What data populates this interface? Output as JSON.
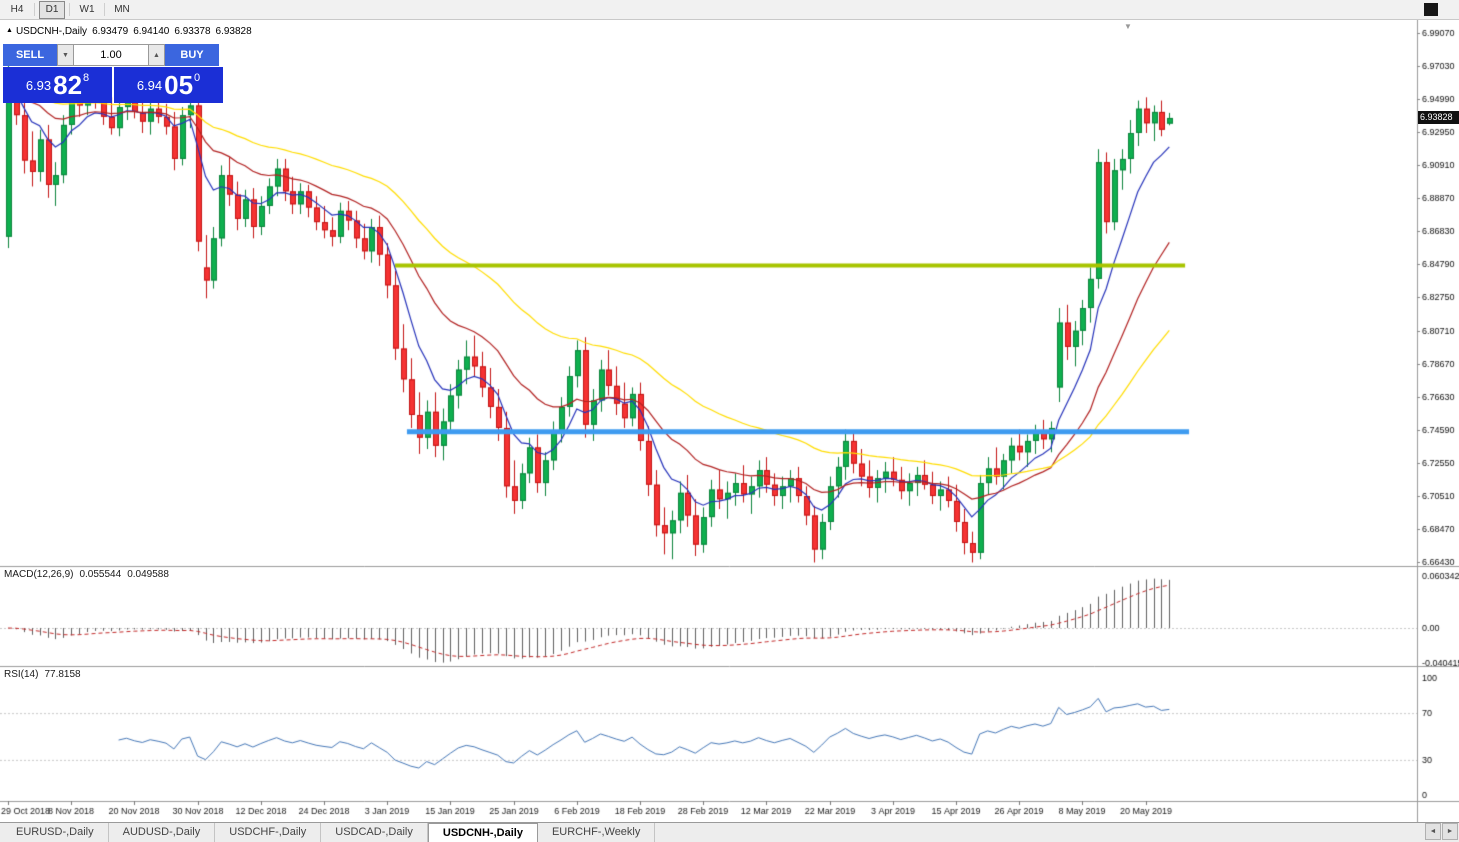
{
  "toolbar": {
    "timeframes": [
      {
        "label": "H4",
        "active": false
      },
      {
        "label": "D1",
        "active": true
      },
      {
        "label": "W1",
        "active": false
      },
      {
        "label": "MN",
        "active": false
      }
    ]
  },
  "icons": {
    "symbol_marker": "▲",
    "spinner_down": "▼",
    "spinner_up": "▲",
    "scroll_left": "◄",
    "scroll_right": "►",
    "shift_marker": "▼"
  },
  "chart": {
    "symbol_line": {
      "symbol": "USDCNH-,Daily",
      "open": "6.93479",
      "high": "6.94140",
      "low": "6.93378",
      "close": "6.93828"
    },
    "current_price": "6.93828"
  },
  "one_click": {
    "sell_label": "SELL",
    "buy_label": "BUY",
    "volume": "1.00",
    "sell_price_small": "6.93",
    "sell_price_big": "82",
    "sell_price_sup": "8",
    "buy_price_small": "6.94",
    "buy_price_big": "05",
    "buy_price_sup": "0",
    "colors": {
      "button_blue": "#3B66DF",
      "panel_blue": "#1B2FD6"
    }
  },
  "indicators": {
    "macd": {
      "label": "MACD(12,26,9)",
      "value_main": "0.055544",
      "value_signal": "0.049588",
      "scale_labels": [
        "0.060342",
        "0.00",
        "-0.040415"
      ],
      "params": {
        "fast": 12,
        "slow": 26,
        "signal": 9
      }
    },
    "rsi": {
      "label": "RSI(14)",
      "value": "77.8158",
      "scale_labels": [
        "100",
        "70",
        "30",
        "0"
      ],
      "levels": [
        70,
        30
      ],
      "period": 14
    }
  },
  "tabs": {
    "items": [
      {
        "label": "EURUSD-,Daily",
        "active": false
      },
      {
        "label": "AUDUSD-,Daily",
        "active": false
      },
      {
        "label": "USDCHF-,Daily",
        "active": false
      },
      {
        "label": "USDCAD-,Daily",
        "active": false
      },
      {
        "label": "USDCNH-,Daily",
        "active": true
      },
      {
        "label": "EURCHF-,Weekly",
        "active": false
      }
    ]
  },
  "chart_data": {
    "type": "candlestick",
    "symbol": "USDCNH-",
    "timeframe": "Daily",
    "price_axis": {
      "labels": [
        "6.99070",
        "6.97030",
        "6.94990",
        "6.92950",
        "6.90910",
        "6.88870",
        "6.86830",
        "6.84790",
        "6.82750",
        "6.80710",
        "6.78670",
        "6.76630",
        "6.74590",
        "6.72550",
        "6.70510",
        "6.68470",
        "6.66430"
      ],
      "max": 6.9907,
      "min": 6.6643,
      "step": 0.0204
    },
    "x_labels": [
      "29 Oct 2018",
      "8 Nov 2018",
      "20 Nov 2018",
      "30 Nov 2018",
      "12 Dec 2018",
      "24 Dec 2018",
      "3 Jan 2019",
      "15 Jan 2019",
      "25 Jan 2019",
      "6 Feb 2019",
      "18 Feb 2019",
      "28 Feb 2019",
      "12 Mar 2019",
      "22 Mar 2019",
      "3 Apr 2019",
      "15 Apr 2019",
      "26 Apr 2019",
      "8 May 2019",
      "20 May 2019"
    ],
    "x_label_indices": [
      0,
      8,
      16,
      24,
      32,
      40,
      48,
      56,
      64,
      72,
      80,
      88,
      96,
      104,
      112,
      120,
      128,
      136,
      144
    ],
    "horizontal_lines": [
      {
        "price": 6.8473,
        "color": "#A8C400",
        "width": 4,
        "start_index": 49,
        "end_index": 149
      },
      {
        "price": 6.7447,
        "color": "#3E9BF0",
        "width": 5,
        "start_index": 50.5,
        "end_index": 149.5
      }
    ],
    "moving_averages": [
      {
        "period": 8,
        "type": "ema",
        "color": "#2633BB"
      },
      {
        "period": 21,
        "type": "ema",
        "color": "#B22222"
      },
      {
        "period": 45,
        "type": "ema",
        "color": "#FFDD00"
      }
    ],
    "colors": {
      "up": "#0FAF4F",
      "up_border": "#0B833C",
      "down": "#F53232",
      "down_border": "#C31414",
      "macd_hist": "#606060",
      "macd_signal": "#C22828",
      "rsi": "#4678B8"
    },
    "ohlc": [
      [
        6.865,
        6.975,
        6.858,
        6.958
      ],
      [
        6.958,
        6.968,
        6.934,
        6.94
      ],
      [
        6.94,
        6.951,
        6.904,
        6.912
      ],
      [
        6.912,
        6.93,
        6.896,
        6.905
      ],
      [
        6.905,
        6.931,
        6.899,
        6.925
      ],
      [
        6.925,
        6.934,
        6.889,
        6.897
      ],
      [
        6.897,
        6.911,
        6.884,
        6.903
      ],
      [
        6.903,
        6.94,
        6.898,
        6.934
      ],
      [
        6.934,
        6.959,
        6.928,
        6.954
      ],
      [
        6.954,
        6.964,
        6.939,
        6.946
      ],
      [
        6.946,
        6.962,
        6.94,
        6.957
      ],
      [
        6.957,
        6.963,
        6.944,
        6.95
      ],
      [
        6.95,
        6.957,
        6.934,
        6.939
      ],
      [
        6.939,
        6.951,
        6.928,
        6.932
      ],
      [
        6.932,
        6.95,
        6.927,
        6.945
      ],
      [
        6.945,
        6.955,
        6.937,
        6.951
      ],
      [
        6.951,
        6.958,
        6.938,
        6.942
      ],
      [
        6.942,
        6.95,
        6.929,
        6.936
      ],
      [
        6.936,
        6.948,
        6.928,
        6.944
      ],
      [
        6.944,
        6.952,
        6.935,
        6.939
      ],
      [
        6.939,
        6.947,
        6.928,
        6.933
      ],
      [
        6.933,
        6.942,
        6.906,
        6.913
      ],
      [
        6.913,
        6.945,
        6.909,
        6.94
      ],
      [
        6.94,
        6.95,
        6.932,
        6.946
      ],
      [
        6.946,
        6.951,
        6.856,
        6.862
      ],
      [
        6.846,
        6.866,
        6.827,
        6.838
      ],
      [
        6.838,
        6.871,
        6.833,
        6.864
      ],
      [
        6.864,
        6.909,
        6.859,
        6.903
      ],
      [
        6.903,
        6.914,
        6.884,
        6.891
      ],
      [
        6.891,
        6.899,
        6.869,
        6.876
      ],
      [
        6.876,
        6.894,
        6.871,
        6.888
      ],
      [
        6.888,
        6.895,
        6.864,
        6.871
      ],
      [
        6.871,
        6.89,
        6.866,
        6.884
      ],
      [
        6.884,
        6.901,
        6.879,
        6.896
      ],
      [
        6.896,
        6.913,
        6.89,
        6.907
      ],
      [
        6.907,
        6.913,
        6.887,
        6.893
      ],
      [
        6.893,
        6.902,
        6.879,
        6.885
      ],
      [
        6.885,
        6.898,
        6.879,
        6.893
      ],
      [
        6.893,
        6.897,
        6.877,
        6.883
      ],
      [
        6.883,
        6.89,
        6.869,
        6.874
      ],
      [
        6.874,
        6.884,
        6.864,
        6.869
      ],
      [
        6.869,
        6.877,
        6.859,
        6.865
      ],
      [
        6.865,
        6.886,
        6.861,
        6.881
      ],
      [
        6.881,
        6.887,
        6.869,
        6.875
      ],
      [
        6.875,
        6.881,
        6.858,
        6.864
      ],
      [
        6.864,
        6.873,
        6.851,
        6.856
      ],
      [
        6.856,
        6.876,
        6.849,
        6.871
      ],
      [
        6.871,
        6.878,
        6.847,
        6.854
      ],
      [
        6.854,
        6.861,
        6.827,
        6.835
      ],
      [
        6.835,
        6.844,
        6.789,
        6.796
      ],
      [
        6.796,
        6.811,
        6.769,
        6.777
      ],
      [
        6.777,
        6.79,
        6.747,
        6.755
      ],
      [
        6.755,
        6.769,
        6.731,
        6.741
      ],
      [
        6.741,
        6.764,
        6.734,
        6.757
      ],
      [
        6.757,
        6.769,
        6.729,
        6.736
      ],
      [
        6.736,
        6.759,
        6.727,
        6.751
      ],
      [
        6.751,
        6.774,
        6.744,
        6.767
      ],
      [
        6.767,
        6.789,
        6.759,
        6.783
      ],
      [
        6.783,
        6.801,
        6.774,
        6.791
      ],
      [
        6.791,
        6.804,
        6.779,
        6.785
      ],
      [
        6.785,
        6.794,
        6.766,
        6.772
      ],
      [
        6.772,
        6.784,
        6.753,
        6.76
      ],
      [
        6.76,
        6.771,
        6.739,
        6.747
      ],
      [
        6.747,
        6.757,
        6.704,
        6.711
      ],
      [
        6.711,
        6.727,
        6.694,
        6.702
      ],
      [
        6.702,
        6.725,
        6.697,
        6.719
      ],
      [
        6.719,
        6.741,
        6.713,
        6.735
      ],
      [
        6.735,
        6.743,
        6.707,
        6.713
      ],
      [
        6.713,
        6.732,
        6.705,
        6.727
      ],
      [
        6.727,
        6.751,
        6.721,
        6.744
      ],
      [
        6.744,
        6.766,
        6.738,
        6.76
      ],
      [
        6.76,
        6.785,
        6.754,
        6.779
      ],
      [
        6.779,
        6.801,
        6.772,
        6.795
      ],
      [
        6.795,
        6.803,
        6.741,
        6.749
      ],
      [
        6.749,
        6.771,
        6.739,
        6.764
      ],
      [
        6.764,
        6.789,
        6.757,
        6.783
      ],
      [
        6.783,
        6.795,
        6.767,
        6.773
      ],
      [
        6.773,
        6.785,
        6.755,
        6.762
      ],
      [
        6.762,
        6.775,
        6.747,
        6.753
      ],
      [
        6.753,
        6.772,
        6.748,
        6.768
      ],
      [
        6.768,
        6.775,
        6.733,
        6.739
      ],
      [
        6.739,
        6.748,
        6.705,
        6.712
      ],
      [
        6.712,
        6.721,
        6.68,
        6.687
      ],
      [
        6.687,
        6.698,
        6.669,
        6.682
      ],
      [
        6.682,
        6.696,
        6.666,
        6.69
      ],
      [
        6.69,
        6.714,
        6.682,
        6.707
      ],
      [
        6.707,
        6.718,
        6.686,
        6.693
      ],
      [
        6.693,
        6.703,
        6.668,
        6.675
      ],
      [
        6.675,
        6.698,
        6.67,
        6.692
      ],
      [
        6.692,
        6.715,
        6.686,
        6.709
      ],
      [
        6.709,
        6.721,
        6.697,
        6.703
      ],
      [
        6.703,
        6.714,
        6.691,
        6.707
      ],
      [
        6.707,
        6.719,
        6.699,
        6.713
      ],
      [
        6.713,
        6.724,
        6.701,
        6.706
      ],
      [
        6.706,
        6.717,
        6.694,
        6.711
      ],
      [
        6.711,
        6.727,
        6.704,
        6.721
      ],
      [
        6.721,
        6.729,
        6.707,
        6.712
      ],
      [
        6.712,
        6.719,
        6.699,
        6.705
      ],
      [
        6.705,
        6.717,
        6.697,
        6.711
      ],
      [
        6.711,
        6.721,
        6.701,
        6.716
      ],
      [
        6.716,
        6.723,
        6.701,
        6.705
      ],
      [
        6.705,
        6.711,
        6.687,
        6.693
      ],
      [
        6.693,
        6.699,
        6.664,
        6.672
      ],
      [
        6.672,
        6.694,
        6.666,
        6.689
      ],
      [
        6.689,
        6.717,
        6.684,
        6.711
      ],
      [
        6.711,
        6.729,
        6.704,
        6.723
      ],
      [
        6.723,
        6.746,
        6.715,
        6.739
      ],
      [
        6.739,
        6.745,
        6.719,
        6.725
      ],
      [
        6.725,
        6.734,
        6.711,
        6.717
      ],
      [
        6.717,
        6.727,
        6.704,
        6.71
      ],
      [
        6.71,
        6.721,
        6.701,
        6.716
      ],
      [
        6.716,
        6.726,
        6.707,
        6.72
      ],
      [
        6.72,
        6.729,
        6.711,
        6.715
      ],
      [
        6.715,
        6.723,
        6.703,
        6.708
      ],
      [
        6.708,
        6.719,
        6.699,
        6.713
      ],
      [
        6.713,
        6.723,
        6.705,
        6.718
      ],
      [
        6.718,
        6.727,
        6.709,
        6.712
      ],
      [
        6.712,
        6.72,
        6.7,
        6.705
      ],
      [
        6.705,
        6.714,
        6.696,
        6.709
      ],
      [
        6.709,
        6.717,
        6.698,
        6.702
      ],
      [
        6.702,
        6.712,
        6.683,
        6.689
      ],
      [
        6.689,
        6.697,
        6.669,
        6.676
      ],
      [
        6.676,
        6.683,
        6.664,
        6.67
      ],
      [
        6.67,
        6.718,
        6.666,
        6.713
      ],
      [
        6.713,
        6.729,
        6.706,
        6.722
      ],
      [
        6.722,
        6.735,
        6.712,
        6.717
      ],
      [
        6.717,
        6.731,
        6.709,
        6.727
      ],
      [
        6.727,
        6.741,
        6.719,
        6.736
      ],
      [
        6.736,
        6.746,
        6.727,
        6.732
      ],
      [
        6.732,
        6.743,
        6.723,
        6.739
      ],
      [
        6.739,
        6.749,
        6.731,
        6.744
      ],
      [
        6.744,
        6.752,
        6.734,
        6.74
      ],
      [
        6.74,
        6.751,
        6.732,
        6.747
      ],
      [
        6.772,
        6.821,
        6.763,
        6.812
      ],
      [
        6.812,
        6.823,
        6.789,
        6.797
      ],
      [
        6.797,
        6.813,
        6.785,
        6.807
      ],
      [
        6.807,
        6.826,
        6.798,
        6.821
      ],
      [
        6.821,
        6.846,
        6.812,
        6.839
      ],
      [
        6.839,
        6.919,
        6.833,
        6.911
      ],
      [
        6.911,
        6.917,
        6.867,
        6.874
      ],
      [
        6.874,
        6.913,
        6.869,
        6.906
      ],
      [
        6.906,
        6.919,
        6.894,
        6.913
      ],
      [
        6.913,
        6.937,
        6.904,
        6.929
      ],
      [
        6.929,
        6.949,
        6.921,
        6.944
      ],
      [
        6.944,
        6.951,
        6.929,
        6.935
      ],
      [
        6.935,
        6.946,
        6.924,
        6.942
      ],
      [
        6.942,
        6.949,
        6.927,
        6.931
      ],
      [
        6.93479,
        6.9414,
        6.93378,
        6.93828
      ]
    ]
  }
}
